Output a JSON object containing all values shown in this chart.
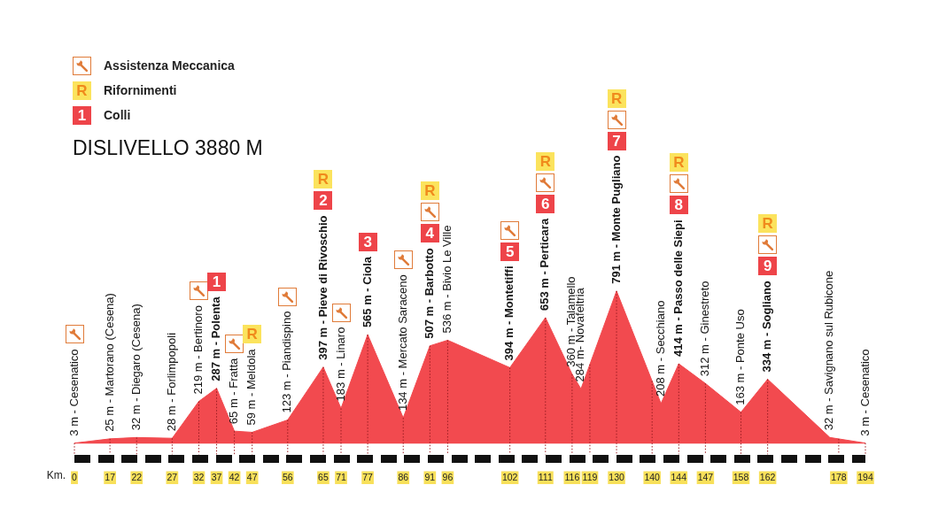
{
  "chart_data": {
    "type": "area",
    "title": "DISLIVELLO 3880 M",
    "xlabel": "Km.",
    "color": "#f24a4f",
    "tick_labels": "x",
    "grid": "x",
    "categories": [
      "0",
      null,
      null,
      null,
      "17",
      null,
      null,
      "22",
      null,
      null,
      null,
      "27",
      null,
      null,
      "32",
      null,
      "37",
      null,
      "42",
      null,
      "47",
      null,
      null,
      null,
      "56",
      null,
      null,
      null,
      "65",
      null,
      "71",
      null,
      null,
      "77",
      null,
      null,
      null,
      "86",
      null,
      null,
      "91",
      null,
      "96",
      null,
      null,
      null,
      null,
      null,
      null,
      "102",
      null,
      null,
      null,
      "111",
      null,
      null,
      "116",
      null,
      "119",
      null,
      null,
      "130",
      null,
      null,
      null,
      "140",
      null,
      null,
      "144",
      null,
      null,
      "147",
      null,
      null,
      null,
      "158",
      null,
      null,
      "162",
      null,
      null,
      null,
      null,
      null,
      null,
      null,
      "178",
      null,
      null,
      "194"
    ],
    "values": [
      3,
      null,
      null,
      null,
      25,
      null,
      null,
      32,
      null,
      null,
      null,
      28,
      null,
      null,
      219,
      null,
      287,
      null,
      65,
      null,
      59,
      null,
      null,
      null,
      123,
      null,
      null,
      null,
      397,
      null,
      183,
      null,
      null,
      565,
      null,
      null,
      null,
      134,
      null,
      null,
      507,
      null,
      536,
      null,
      null,
      null,
      null,
      null,
      null,
      394,
      null,
      null,
      null,
      653,
      null,
      null,
      360,
      284,
      null,
      null,
      null,
      791,
      null,
      null,
      null,
      null,
      208,
      null,
      414,
      null,
      null,
      312,
      null,
      null,
      null,
      163,
      null,
      null,
      334,
      null,
      null,
      null,
      null,
      null,
      null,
      32,
      null,
      null,
      null,
      3
    ],
    "value_labels": [
      "3 m - Cesenatico",
      null,
      null,
      null,
      "25 m - Martorano (Cesena)",
      null,
      null,
      "32 m - Diegaro (Cesena)",
      null,
      null,
      null,
      "28 m - Forlimpopoli",
      null,
      null,
      "219 m - Bertinoro",
      null,
      "287 m - Polenta",
      null,
      "65 m - Fratta",
      null,
      "59 m - Meldola",
      null,
      null,
      null,
      "123 m - Piandispino",
      null,
      null,
      null,
      "397 m - Pieve di Rivoschio",
      null,
      "183 m - Linaro",
      null,
      null,
      "565 m - Ciola",
      null,
      null,
      null,
      "134 m - Mercato Saraceno",
      null,
      null,
      "507 m - Barbotto",
      null,
      "536 m - Bivio Le Ville",
      null,
      null,
      null,
      null,
      null,
      null,
      "394 m - Montetiffi",
      null,
      null,
      null,
      "653 m - Perticara",
      null,
      null,
      "360 m - Talamello",
      "284 m- Novafeltria",
      null,
      null,
      null,
      "791 m - Monte Pugliano",
      null,
      null,
      null,
      null,
      "208 m - Secchiano",
      null,
      "414 m - Passo delle Siepi",
      null,
      null,
      "312 m - Ginestreto",
      null,
      null,
      null,
      "163 m - Ponte Uso",
      null,
      null,
      "334 m - Sogliano",
      null,
      null,
      null,
      null,
      null,
      null,
      "32 m - Savignano sul Rubicone",
      null,
      null,
      null,
      "3 m - Cesenatico"
    ],
    "annotations": [
      "Assistenza Meccanica",
      "R",
      "Rifornimenti",
      "1",
      "Colli",
      "1",
      "2",
      "3",
      "4",
      "5",
      "6",
      "7",
      "8",
      "9",
      "R",
      "R",
      "R",
      "R",
      "R",
      "R",
      "R"
    ]
  }
}
